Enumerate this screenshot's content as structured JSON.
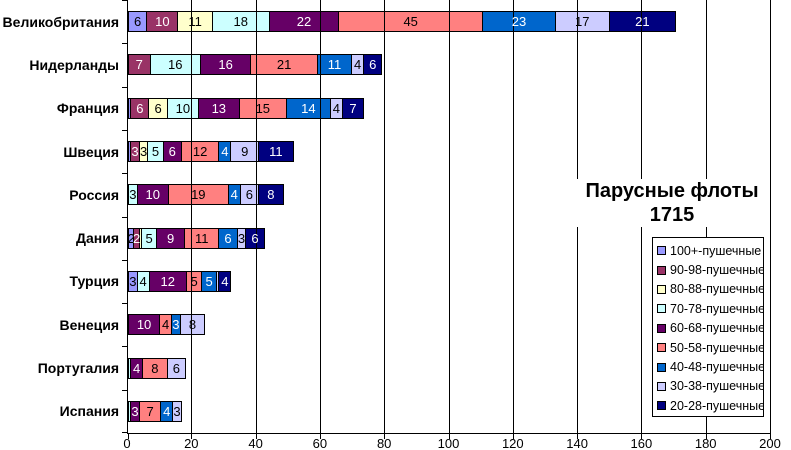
{
  "title_lines": [
    "Парусные флоты",
    "1715"
  ],
  "chart_data": {
    "type": "bar",
    "orientation": "horizontal",
    "stacked": true,
    "title": "Парусные флоты 1715",
    "xlabel": "",
    "ylabel": "",
    "xlim": [
      0,
      200
    ],
    "x_ticks": [
      0,
      20,
      40,
      60,
      80,
      100,
      120,
      140,
      160,
      180,
      200
    ],
    "grid": "vertical",
    "legend_position": "right-bottom",
    "categories": [
      "Великобритания",
      "Нидерланды",
      "Франция",
      "Швеция",
      "Россия",
      "Дания",
      "Турция",
      "Венеция",
      "Португалия",
      "Испания"
    ],
    "series": [
      {
        "name": "100+-пушечные",
        "color": "#9999FF",
        "label_color": "#000000",
        "values": [
          6,
          0,
          1,
          1,
          0,
          2,
          3,
          0,
          0,
          0
        ]
      },
      {
        "name": "90-98-пушечные",
        "color": "#993366",
        "label_color": "#FFFFFF",
        "values": [
          10,
          7,
          6,
          3,
          0,
          2,
          0,
          0,
          0,
          0
        ]
      },
      {
        "name": "80-88-пушечные",
        "color": "#FFFFCC",
        "label_color": "#000000",
        "values": [
          11,
          0,
          6,
          3,
          0,
          1,
          0,
          0,
          0,
          0
        ]
      },
      {
        "name": "70-78-пушечные",
        "color": "#CCFFFF",
        "label_color": "#000000",
        "values": [
          18,
          16,
          10,
          5,
          3,
          5,
          4,
          0,
          1,
          1
        ]
      },
      {
        "name": "60-68-пушечные",
        "color": "#660066",
        "label_color": "#FFFFFF",
        "values": [
          22,
          16,
          13,
          6,
          10,
          9,
          12,
          10,
          4,
          3
        ]
      },
      {
        "name": "50-58-пушечные",
        "color": "#FF8080",
        "label_color": "#000000",
        "values": [
          45,
          21,
          15,
          12,
          19,
          11,
          5,
          4,
          8,
          7
        ]
      },
      {
        "name": "40-48-пушечные",
        "color": "#0066CC",
        "label_color": "#FFFFFF",
        "values": [
          23,
          11,
          14,
          4,
          4,
          6,
          5,
          3,
          0,
          4
        ]
      },
      {
        "name": "30-38-пушечные",
        "color": "#CCCCFF",
        "label_color": "#000000",
        "values": [
          17,
          4,
          4,
          9,
          6,
          3,
          1,
          8,
          6,
          3
        ]
      },
      {
        "name": "20-28-пушечные",
        "color": "#000080",
        "label_color": "#FFFFFF",
        "values": [
          21,
          6,
          7,
          11,
          8,
          6,
          4,
          0,
          0,
          0
        ]
      }
    ],
    "totals": [
      173,
      81,
      76,
      54,
      50,
      45,
      34,
      25,
      19,
      18
    ],
    "label_min_value_shown": 2,
    "axis_color": "#000000",
    "background_color": "#FFFFFF"
  }
}
